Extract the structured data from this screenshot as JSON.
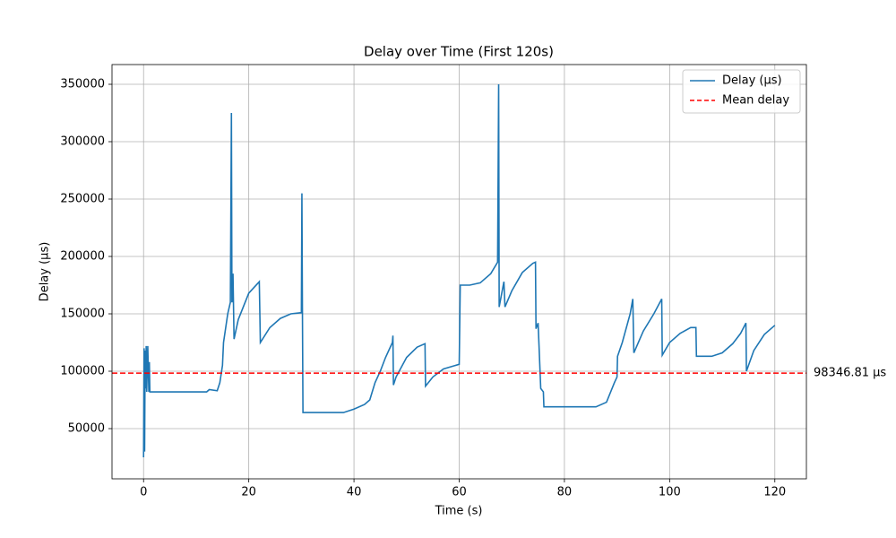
{
  "chart_data": {
    "type": "line",
    "title": "Delay over Time (First 120s)",
    "x_label": "Time (s)",
    "y_label": "Delay (µs)",
    "x": [
      0,
      0.1,
      0.2,
      0.3,
      0.4,
      0.5,
      0.6,
      0.8,
      1.0,
      1.1,
      1.2,
      5,
      10,
      12,
      12.5,
      14,
      14.5,
      15,
      15.2,
      16,
      16.5,
      16.7,
      16.8,
      17,
      17.2,
      18,
      20,
      22,
      22.2,
      24,
      26,
      28,
      30,
      30.1,
      30.2,
      30.3,
      35,
      38,
      40,
      42,
      43,
      44,
      45,
      46,
      47.3,
      47.4,
      47.5,
      48,
      50,
      52,
      53.5,
      53.6,
      55,
      57,
      60,
      60.1,
      60.2,
      62,
      64,
      66,
      67.3,
      67.5,
      67.6,
      68.5,
      68.7,
      70,
      72,
      74,
      74.5,
      74.6,
      75,
      75.5,
      76,
      76.1,
      80,
      86,
      88,
      89.5,
      90,
      90.1,
      91,
      92.5,
      93,
      93.2,
      95,
      97,
      98.5,
      98.6,
      100,
      102,
      104,
      105,
      105.1,
      108,
      110,
      112,
      113.5,
      114.5,
      114.6,
      116,
      118,
      120
    ],
    "series": [
      {
        "name": "Delay (µs)",
        "color": "#1f77b4",
        "values": [
          25000,
          120000,
          30000,
          118000,
          85000,
          122000,
          82000,
          122000,
          82000,
          108000,
          82000,
          82000,
          82000,
          82000,
          84000,
          83000,
          90000,
          105000,
          125000,
          150000,
          160000,
          325000,
          160000,
          185000,
          128000,
          145000,
          168000,
          178000,
          125000,
          138000,
          146000,
          150000,
          151000,
          255000,
          152000,
          64000,
          64000,
          64000,
          67000,
          71000,
          75000,
          90000,
          100000,
          112000,
          125000,
          131000,
          88000,
          95000,
          112000,
          121000,
          124000,
          87000,
          95000,
          102000,
          106000,
          140000,
          175000,
          175000,
          177000,
          185000,
          195000,
          350000,
          156000,
          178000,
          156000,
          170000,
          186000,
          194000,
          195000,
          137000,
          142000,
          85000,
          82000,
          69000,
          69000,
          69000,
          73000,
          90000,
          95000,
          113000,
          125000,
          150000,
          163000,
          116000,
          135000,
          150000,
          163000,
          114000,
          125000,
          133000,
          138000,
          138000,
          113000,
          113000,
          116000,
          124000,
          133000,
          142000,
          100000,
          118000,
          132000,
          140000
        ]
      }
    ],
    "mean_line": {
      "name": "Mean delay",
      "value": 98346.81,
      "label": "98346.81 µs",
      "color": "#ff0000"
    },
    "xlim": [
      -6,
      126
    ],
    "xticks": [
      0,
      20,
      40,
      60,
      80,
      100,
      120
    ],
    "ylim": [
      6250,
      367190
    ],
    "yticks": [
      50000,
      100000,
      150000,
      200000,
      250000,
      300000,
      350000
    ],
    "grid": true,
    "legend": "upper right"
  }
}
